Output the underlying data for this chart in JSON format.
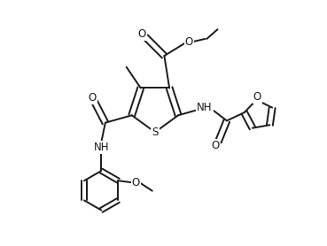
{
  "bg_color": "#ffffff",
  "line_color": "#1a1a1a",
  "line_width": 1.4,
  "font_size": 8.5,
  "figsize": [
    3.69,
    2.78
  ],
  "dpi": 100,
  "xlim": [
    0,
    9.6
  ],
  "ylim": [
    0,
    7.2
  ]
}
